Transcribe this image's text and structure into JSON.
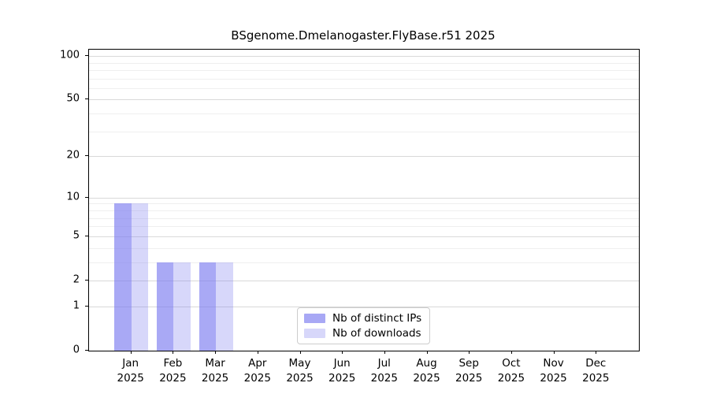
{
  "title": "BSgenome.Dmelanogaster.FlyBase.r51 2025",
  "colors": {
    "distinct_ips_bar": "rgba(124,124,240,0.66)",
    "downloads_bar": "rgba(124,124,240,0.30)",
    "distinct_ips_swatch": "#a8a8f5",
    "downloads_swatch": "#d7d7fa",
    "major_gridline": "#d9d9d9",
    "minor_gridline": "#efefef",
    "axis": "#000000"
  },
  "legend": {
    "items": [
      {
        "label": "Nb of distinct IPs"
      },
      {
        "label": "Nb of downloads"
      }
    ]
  },
  "chart_data": {
    "type": "bar",
    "title": "BSgenome.Dmelanogaster.FlyBase.r51 2025",
    "scale": "log10(1+x)",
    "categories": [
      "Jan",
      "Feb",
      "Mar",
      "Apr",
      "May",
      "Jun",
      "Jul",
      "Aug",
      "Sep",
      "Oct",
      "Nov",
      "Dec"
    ],
    "category_year": "2025",
    "series": [
      {
        "name": "Nb of distinct IPs",
        "values": [
          9,
          3,
          3,
          0,
          0,
          0,
          0,
          0,
          0,
          0,
          0,
          0
        ]
      },
      {
        "name": "Nb of downloads",
        "values": [
          9,
          3,
          3,
          0,
          0,
          0,
          0,
          0,
          0,
          0,
          0,
          0
        ]
      }
    ],
    "y_major_ticks": [
      0,
      1,
      2,
      5,
      10,
      20,
      50,
      100
    ],
    "y_minor_gridlines": [
      3,
      4,
      6,
      7,
      8,
      9,
      30,
      40,
      60,
      70,
      80,
      90
    ],
    "ylim": [
      0,
      110.6
    ],
    "xlabel": "",
    "ylabel": "",
    "grid": true,
    "legend_position": "bottom-center-inside"
  }
}
